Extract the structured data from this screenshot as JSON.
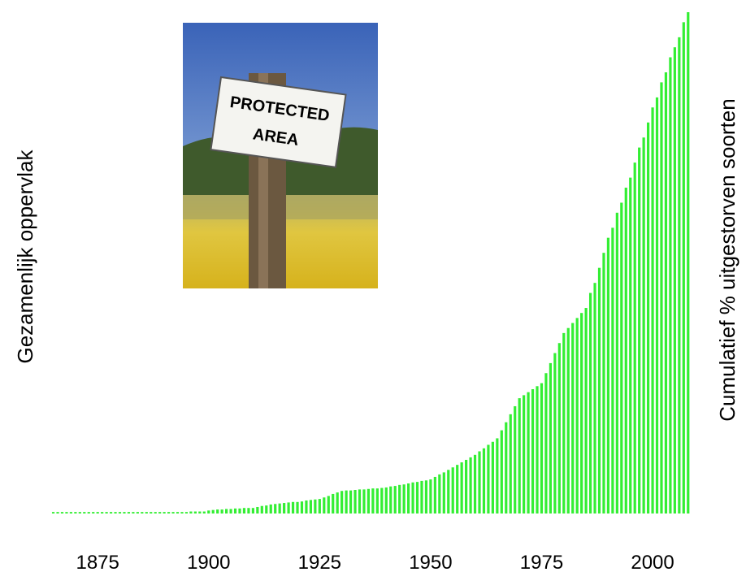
{
  "chart_data": {
    "type": "bar",
    "ylabel": "Gezamenlijk oppervlak",
    "y2label": "Cumulatief % uitgestorven soorten",
    "annotations": [
      "PROTECTED",
      "AREA"
    ],
    "color": "#33ee33",
    "x": [
      1865,
      1866,
      1867,
      1868,
      1869,
      1870,
      1871,
      1872,
      1873,
      1874,
      1875,
      1876,
      1877,
      1878,
      1879,
      1880,
      1881,
      1882,
      1883,
      1884,
      1885,
      1886,
      1887,
      1888,
      1889,
      1890,
      1891,
      1892,
      1893,
      1894,
      1895,
      1896,
      1897,
      1898,
      1899,
      1900,
      1901,
      1902,
      1903,
      1904,
      1905,
      1906,
      1907,
      1908,
      1909,
      1910,
      1911,
      1912,
      1913,
      1914,
      1915,
      1916,
      1917,
      1918,
      1919,
      1920,
      1921,
      1922,
      1923,
      1924,
      1925,
      1926,
      1927,
      1928,
      1929,
      1930,
      1931,
      1932,
      1933,
      1934,
      1935,
      1936,
      1937,
      1938,
      1939,
      1940,
      1941,
      1942,
      1943,
      1944,
      1945,
      1946,
      1947,
      1948,
      1949,
      1950,
      1951,
      1952,
      1953,
      1954,
      1955,
      1956,
      1957,
      1958,
      1959,
      1960,
      1961,
      1962,
      1963,
      1964,
      1965,
      1966,
      1967,
      1968,
      1969,
      1970,
      1971,
      1972,
      1973,
      1974,
      1975,
      1976,
      1977,
      1978,
      1979,
      1980,
      1981,
      1982,
      1983,
      1984,
      1985,
      1986,
      1987,
      1988,
      1989,
      1990,
      1991,
      1992,
      1993,
      1994,
      1995,
      1996,
      1997,
      1998,
      1999,
      2000,
      2001,
      2002,
      2003,
      2004,
      2005,
      2006,
      2007,
      2008
    ],
    "values": [
      0.3,
      0.3,
      0.3,
      0.3,
      0.3,
      0.3,
      0.3,
      0.3,
      0.3,
      0.3,
      0.3,
      0.3,
      0.3,
      0.3,
      0.3,
      0.3,
      0.3,
      0.3,
      0.3,
      0.3,
      0.3,
      0.3,
      0.3,
      0.3,
      0.3,
      0.3,
      0.3,
      0.3,
      0.3,
      0.3,
      0.3,
      0.4,
      0.4,
      0.4,
      0.4,
      0.6,
      0.7,
      0.8,
      0.8,
      0.9,
      0.9,
      1.0,
      1.0,
      1.1,
      1.1,
      1.1,
      1.3,
      1.5,
      1.6,
      1.8,
      1.9,
      2.0,
      2.1,
      2.2,
      2.3,
      2.3,
      2.4,
      2.6,
      2.7,
      2.8,
      2.9,
      3.2,
      3.5,
      3.9,
      4.2,
      4.5,
      4.6,
      4.6,
      4.7,
      4.8,
      4.8,
      4.9,
      5.0,
      5.0,
      5.1,
      5.2,
      5.4,
      5.5,
      5.7,
      5.8,
      6.0,
      6.2,
      6.3,
      6.5,
      6.6,
      6.8,
      7.3,
      7.8,
      8.2,
      8.7,
      9.2,
      9.7,
      10.2,
      10.7,
      11.2,
      11.7,
      12.4,
      13.0,
      13.7,
      14.3,
      15.0,
      16.6,
      18.2,
      19.8,
      21.4,
      23,
      23.6,
      24.2,
      24.8,
      25.4,
      26,
      28,
      30,
      32,
      34,
      36,
      37,
      38,
      39,
      40,
      41,
      44,
      46,
      49,
      52,
      55,
      57,
      60,
      62,
      65,
      67,
      70,
      73,
      75,
      78,
      81,
      83,
      86,
      88,
      91,
      93,
      95,
      98,
      100
    ],
    "xlim": [
      1853,
      2015
    ],
    "xticks": [
      1875,
      1900,
      1925,
      1950,
      1975,
      2000
    ],
    "ylim": [
      0,
      100
    ]
  }
}
